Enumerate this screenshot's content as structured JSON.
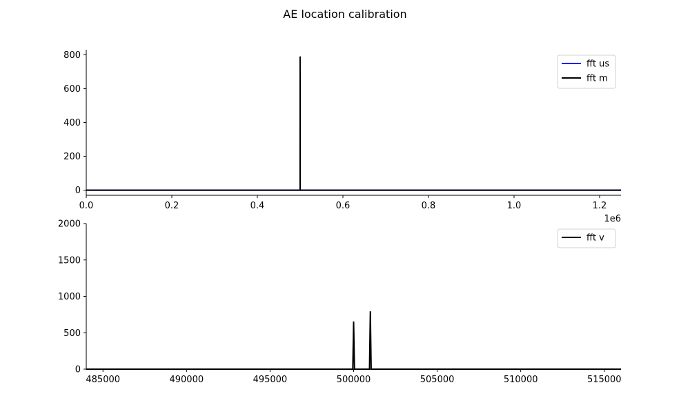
{
  "title": "AE location calibration",
  "chart_data": [
    {
      "type": "line",
      "xlim": [
        0,
        1250000
      ],
      "ylim": [
        -30,
        830
      ],
      "xticks": [
        0,
        200000,
        400000,
        600000,
        800000,
        1000000,
        1200000
      ],
      "xtick_labels": [
        "0.0",
        "0.2",
        "0.4",
        "0.6",
        "0.8",
        "1.0",
        "1.2"
      ],
      "x_offset_text": "1e6",
      "yticks": [
        0,
        200,
        400,
        600,
        800
      ],
      "ytick_labels": [
        "0",
        "200",
        "400",
        "600",
        "800"
      ],
      "legend": "upper right",
      "series": [
        {
          "name": "fft us",
          "color": "#0000ff",
          "x": [
            0,
            1250000
          ],
          "y": [
            0,
            0
          ]
        },
        {
          "name": "fft m",
          "color": "#000000",
          "x": [
            0,
            499800,
            499900,
            500000,
            500100,
            500200,
            1250000
          ],
          "y": [
            0,
            0,
            790,
            655,
            0,
            0,
            0
          ]
        }
      ]
    },
    {
      "type": "line",
      "xlim": [
        484000,
        516000
      ],
      "ylim": [
        0,
        2000
      ],
      "xticks": [
        485000,
        490000,
        495000,
        500000,
        505000,
        510000,
        515000
      ],
      "xtick_labels": [
        "485000",
        "490000",
        "495000",
        "500000",
        "505000",
        "510000",
        "515000"
      ],
      "yticks": [
        0,
        500,
        1000,
        1500,
        2000
      ],
      "ytick_labels": [
        "0",
        "500",
        "1000",
        "1500",
        "2000"
      ],
      "legend": "upper right",
      "series": [
        {
          "name": "fft v",
          "color": "#000000",
          "x": [
            484000,
            499950,
            500000,
            500050,
            500950,
            501000,
            501050,
            516000
          ],
          "y": [
            0,
            0,
            655,
            0,
            0,
            795,
            0,
            0
          ]
        }
      ]
    }
  ]
}
